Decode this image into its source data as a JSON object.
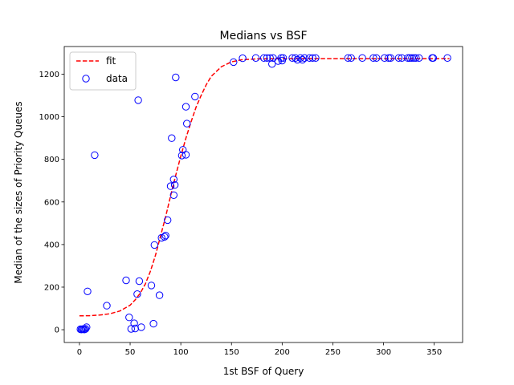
{
  "chart_data": {
    "type": "scatter",
    "title": "Medians vs BSF",
    "xlabel": "1st BSF of Query",
    "ylabel": "Median of the sizes of Priority Queues",
    "xlim": [
      -15,
      378
    ],
    "ylim": [
      -60,
      1330
    ],
    "xticks": [
      0,
      50,
      100,
      150,
      200,
      250,
      300,
      350
    ],
    "yticks": [
      0,
      200,
      400,
      600,
      800,
      1000,
      1200
    ],
    "grid": false,
    "legend_position": "top-left",
    "series": [
      {
        "name": "fit",
        "kind": "line",
        "style": "dashed",
        "color": "#ff0000",
        "x": [
          0,
          10,
          20,
          30,
          40,
          50,
          55,
          60,
          65,
          70,
          75,
          80,
          85,
          90,
          95,
          100,
          105,
          110,
          115,
          120,
          125,
          130,
          140,
          150,
          160,
          175,
          200,
          250,
          300,
          350,
          365
        ],
        "y": [
          65,
          66,
          69,
          75,
          88,
          115,
          140,
          172,
          215,
          275,
          350,
          440,
          530,
          630,
          725,
          815,
          900,
          975,
          1045,
          1100,
          1150,
          1190,
          1235,
          1258,
          1268,
          1272,
          1273,
          1273,
          1273,
          1273,
          1273
        ]
      },
      {
        "name": "data",
        "kind": "scatter",
        "marker": "hollow-circle",
        "color": "#0000ff",
        "points": [
          [
            1,
            2
          ],
          [
            2,
            1
          ],
          [
            3,
            3
          ],
          [
            4,
            2
          ],
          [
            5,
            1
          ],
          [
            6,
            4
          ],
          [
            7,
            12
          ],
          [
            8,
            180
          ],
          [
            15,
            820
          ],
          [
            27,
            113
          ],
          [
            46,
            232
          ],
          [
            49,
            58
          ],
          [
            51,
            4
          ],
          [
            54,
            30
          ],
          [
            55,
            6
          ],
          [
            57,
            167
          ],
          [
            58,
            1078
          ],
          [
            59,
            228
          ],
          [
            61,
            12
          ],
          [
            71,
            208
          ],
          [
            73,
            28
          ],
          [
            74,
            398
          ],
          [
            79,
            162
          ],
          [
            81,
            432
          ],
          [
            84,
            436
          ],
          [
            85,
            442
          ],
          [
            87,
            515
          ],
          [
            90,
            674
          ],
          [
            91,
            900
          ],
          [
            93,
            632
          ],
          [
            93,
            706
          ],
          [
            94,
            680
          ],
          [
            95,
            1185
          ],
          [
            101,
            818
          ],
          [
            102,
            845
          ],
          [
            105,
            1047
          ],
          [
            105,
            822
          ],
          [
            106,
            968
          ],
          [
            114,
            1095
          ],
          [
            152,
            1257
          ],
          [
            161,
            1275
          ],
          [
            174,
            1276
          ],
          [
            182,
            1276
          ],
          [
            185,
            1276
          ],
          [
            188,
            1276
          ],
          [
            190,
            1248
          ],
          [
            191,
            1276
          ],
          [
            196,
            1262
          ],
          [
            199,
            1276
          ],
          [
            200,
            1264
          ],
          [
            201,
            1276
          ],
          [
            210,
            1276
          ],
          [
            213,
            1276
          ],
          [
            215,
            1268
          ],
          [
            218,
            1276
          ],
          [
            220,
            1268
          ],
          [
            222,
            1276
          ],
          [
            227,
            1276
          ],
          [
            230,
            1276
          ],
          [
            233,
            1276
          ],
          [
            265,
            1276
          ],
          [
            268,
            1276
          ],
          [
            279,
            1276
          ],
          [
            290,
            1276
          ],
          [
            293,
            1276
          ],
          [
            301,
            1276
          ],
          [
            305,
            1276
          ],
          [
            307,
            1276
          ],
          [
            315,
            1276
          ],
          [
            318,
            1276
          ],
          [
            324,
            1276
          ],
          [
            326,
            1276
          ],
          [
            328,
            1276
          ],
          [
            330,
            1276
          ],
          [
            332,
            1276
          ],
          [
            335,
            1276
          ],
          [
            348,
            1276
          ],
          [
            349,
            1276
          ],
          [
            363,
            1276
          ]
        ]
      }
    ]
  }
}
